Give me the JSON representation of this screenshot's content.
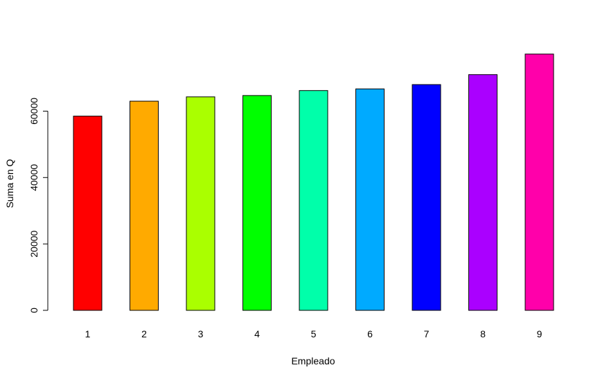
{
  "chart_data": {
    "type": "bar",
    "title": "",
    "xlabel": "Empleado",
    "ylabel": "Suma en Q",
    "categories": [
      "1",
      "2",
      "3",
      "4",
      "5",
      "6",
      "7",
      "8",
      "9"
    ],
    "values": [
      58500,
      63000,
      64300,
      64700,
      66200,
      66700,
      68000,
      71000,
      77200
    ],
    "colors": [
      "#FF0000",
      "#FFAA00",
      "#AAFF00",
      "#00FF00",
      "#00FFAA",
      "#00AAFF",
      "#0000FF",
      "#AA00FF",
      "#FF00AA"
    ],
    "ylim": [
      0,
      77200
    ],
    "yticks": [
      0,
      20000,
      40000,
      60000
    ],
    "ytick_labels": [
      "0",
      "20000",
      "40000",
      "60000"
    ],
    "grid": false,
    "legend": false
  }
}
